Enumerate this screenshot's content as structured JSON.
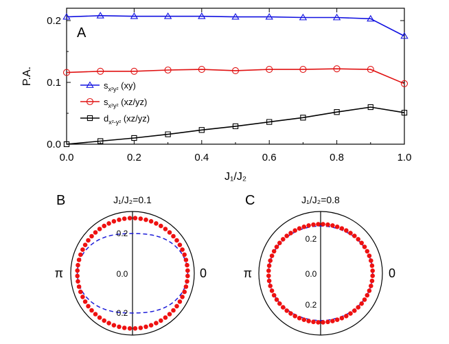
{
  "chart_data": [
    {
      "type": "line",
      "panel_label": "A",
      "xlabel": "J₁/J₂",
      "ylabel": "P.A.",
      "xlim": [
        0.0,
        1.0
      ],
      "ylim": [
        0.0,
        0.22
      ],
      "x_ticks": [
        "0.0",
        "0.2",
        "0.4",
        "0.6",
        "0.8",
        "1.0"
      ],
      "y_ticks": [
        "0.0",
        "0.1",
        "0.2"
      ],
      "x": [
        0.0,
        0.1,
        0.2,
        0.3,
        0.4,
        0.5,
        0.6,
        0.7,
        0.8,
        0.9,
        1.0
      ],
      "legend_position": "lower-left",
      "series": [
        {
          "name": "s",
          "name_sub": "x²y²",
          "name_suffix": " (xy)",
          "color": "#1010e0",
          "marker": "triangle",
          "values": [
            0.206,
            0.208,
            0.207,
            0.207,
            0.207,
            0.206,
            0.206,
            0.205,
            0.205,
            0.203,
            0.175
          ]
        },
        {
          "name": "s",
          "name_sub": "x²y²",
          "name_suffix": " (xz/yz)",
          "color": "#e01010",
          "marker": "circle",
          "values": [
            0.116,
            0.118,
            0.118,
            0.12,
            0.121,
            0.119,
            0.121,
            0.121,
            0.122,
            0.121,
            0.098
          ]
        },
        {
          "name": "d",
          "name_sub": "x²-y²",
          "name_suffix": " (xz/yz)",
          "color": "#000000",
          "marker": "square",
          "values": [
            0.0,
            0.005,
            0.01,
            0.016,
            0.023,
            0.029,
            0.036,
            0.043,
            0.052,
            0.06,
            0.051
          ]
        }
      ]
    },
    {
      "type": "polar",
      "panel_label": "B",
      "title": "J₁/J₂=0.1",
      "angle_labels": {
        "left": "π",
        "right": "0"
      },
      "radial_ticks_top": [
        "0.2"
      ],
      "radial_ticks_bottom": [
        "0.2"
      ],
      "center_label": "0.0",
      "rmax": 0.28,
      "dots": {
        "color": "#ee1111",
        "count": 64,
        "radius": 0.25,
        "shape_amplitude": 0.0
      },
      "dashed": {
        "color": "#1a1ad8",
        "radius": 0.215,
        "shape_amplitude": 0.035
      }
    },
    {
      "type": "polar",
      "panel_label": "C",
      "title": "J₁/J₂=0.8",
      "angle_labels": {
        "left": "π",
        "right": "0"
      },
      "radial_ticks_top": [
        "0.2"
      ],
      "radial_ticks_bottom": [
        "0.2"
      ],
      "center_label": "0.0",
      "rmax": 0.33,
      "dots": {
        "color": "#ee1111",
        "count": 64,
        "radius": 0.27,
        "shape_amplitude": 0.008
      },
      "dashed": {
        "color": "#1a1ad8",
        "radius": 0.265,
        "shape_amplitude": 0.013
      }
    }
  ]
}
